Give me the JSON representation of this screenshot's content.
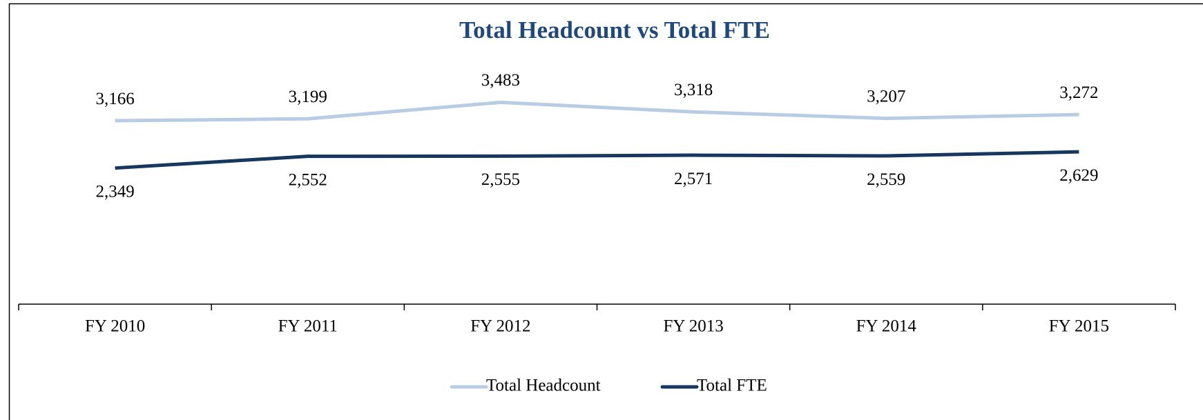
{
  "chart_data": {
    "type": "line",
    "title": "Total Headcount vs Total FTE",
    "categories": [
      "FY 2010",
      "FY 2011",
      "FY 2012",
      "FY 2013",
      "FY 2014",
      "FY 2015"
    ],
    "series": [
      {
        "name": "Total Headcount",
        "color": "#b8cce4",
        "values": [
          3166,
          3199,
          3483,
          3318,
          3207,
          3272
        ],
        "value_labels": [
          "3,166",
          "3,199",
          "3,483",
          "3,318",
          "3,207",
          "3,272"
        ]
      },
      {
        "name": "Total FTE",
        "color": "#17375e",
        "values": [
          2349,
          2552,
          2555,
          2571,
          2559,
          2629
        ],
        "value_labels": [
          "2,349",
          "2,552",
          "2,555",
          "2,571",
          "2,559",
          "2,629"
        ]
      }
    ],
    "ylim": [
      0,
      4000
    ],
    "legend": "bottom"
  }
}
